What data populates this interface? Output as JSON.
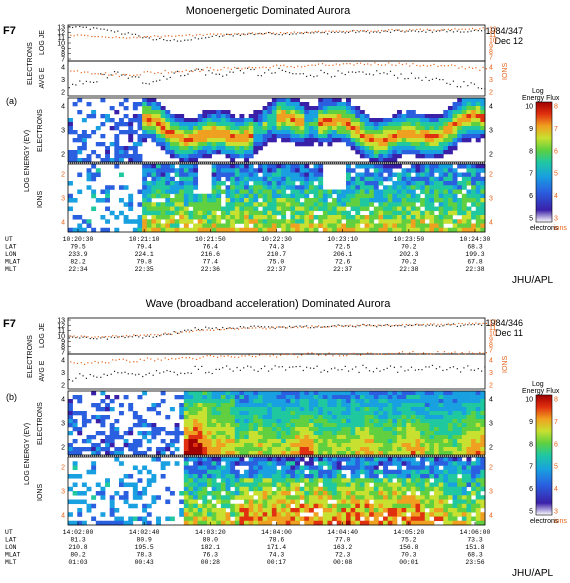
{
  "chart_data": [
    {
      "type": "heatmap",
      "title": "Monoenergetic Dominated Aurora",
      "panel_letter": "(a)",
      "satellite": "F7",
      "date_code": "1984/347",
      "date": "Dec 12",
      "x_tick_labels": {
        "UT": [
          "10:20:30",
          "10:21:10",
          "10:21:50",
          "10:22:30",
          "10:23:10",
          "10:23:50",
          "10:24:30"
        ],
        "LAT": [
          "79.5",
          "79.4",
          "76.4",
          "74.3",
          "72.5",
          "70.2",
          "68.3"
        ],
        "LON": [
          "233.9",
          "224.1",
          "216.6",
          "210.7",
          "206.1",
          "202.3",
          "199.3"
        ],
        "MLAT": [
          "82.2",
          "79.8",
          "77.4",
          "75.0",
          "72.6",
          "70.2",
          "67.8"
        ],
        "MLT": [
          "22:34",
          "22:35",
          "22:36",
          "22:37",
          "22:37",
          "22:38",
          "22:38"
        ]
      },
      "electron_energy_flux": {
        "points": [
          13.1,
          13.0,
          12.8,
          12.6,
          12.3,
          11.9,
          11.6,
          11.1,
          10.8,
          10.6,
          10.6,
          10.7,
          10.9,
          11.2,
          11.4,
          11.6,
          11.7,
          11.8,
          11.9,
          11.9,
          11.8,
          11.9,
          12.0,
          12.0,
          12.0,
          12.1,
          12.1,
          12.2,
          12.2,
          12.1,
          12.2,
          12.3,
          12.3,
          12.2,
          12.3,
          12.4,
          12.3,
          12.2,
          12.4,
          12.3
        ],
        "ion_points": [
          11.0,
          10.9,
          10.8,
          10.7,
          10.6,
          10.5,
          10.6,
          10.7,
          10.8,
          10.9,
          10.9,
          11.0,
          11.0,
          11.1,
          11.1,
          11.2,
          11.2,
          11.3,
          11.3,
          11.4,
          11.4,
          11.5,
          11.5,
          11.6,
          11.6,
          11.7,
          11.7,
          11.8,
          11.8,
          11.8,
          11.9,
          11.9,
          11.9,
          12.0,
          12.0,
          12.0,
          12.1,
          12.1,
          12.1,
          12.2
        ]
      },
      "avg_energy": {
        "points": [
          2.5,
          2.7,
          3.0,
          3.3,
          3.5,
          3.3,
          3.1,
          2.9,
          3.0,
          3.3,
          3.5,
          3.6,
          3.8,
          3.6,
          3.4,
          3.6,
          3.8,
          3.7,
          3.5,
          3.6,
          3.7,
          3.5,
          3.4,
          3.5,
          3.6,
          3.5,
          3.4,
          3.5,
          3.4,
          3.6,
          3.5,
          3.4,
          3.3,
          3.2,
          3.0,
          2.9,
          2.8,
          2.7,
          2.6,
          2.5
        ],
        "ion_points": [
          3.7,
          3.7,
          3.6,
          3.5,
          3.4,
          3.4,
          3.5,
          3.6,
          3.6,
          3.7,
          3.7,
          3.8,
          3.8,
          3.9,
          3.9,
          3.9,
          4.0,
          4.0,
          4.0,
          4.1,
          4.1,
          4.1,
          4.1,
          4.2,
          4.2,
          4.2,
          4.2,
          4.3,
          4.3,
          4.3,
          4.3,
          4.3,
          4.2,
          4.2,
          4.2,
          4.1,
          4.1,
          4.0,
          4.0,
          3.9
        ]
      }
    },
    {
      "type": "heatmap",
      "title": "Wave (broadband acceleration) Dominated Aurora",
      "panel_letter": "(b)",
      "satellite": "F7",
      "date_code": "1984/346",
      "date": "Dec 11",
      "x_tick_labels": {
        "UT": [
          "14:02:00",
          "14:02:40",
          "14:03:20",
          "14:04:00",
          "14:04:40",
          "14:05:20",
          "14:06:00"
        ],
        "LAT": [
          "81.3",
          "80.9",
          "80.0",
          "78.6",
          "77.0",
          "75.2",
          "73.3"
        ],
        "LON": [
          "210.8",
          "195.5",
          "182.1",
          "171.4",
          "163.2",
          "156.8",
          "151.8"
        ],
        "MLAT": [
          "80.2",
          "78.3",
          "76.3",
          "74.3",
          "72.3",
          "70.3",
          "68.3"
        ],
        "MLT": [
          "01:03",
          "00:43",
          "00:28",
          "00:17",
          "00:08",
          "00:01",
          "23:56"
        ]
      },
      "electron_energy_flux": {
        "points": [
          9.8,
          9.7,
          9.6,
          9.7,
          9.8,
          9.9,
          10.0,
          9.9,
          10.0,
          10.3,
          10.8,
          11.2,
          11.5,
          11.6,
          11.5,
          11.6,
          11.7,
          11.8,
          11.8,
          11.7,
          11.8,
          11.9,
          11.9,
          11.8,
          11.9,
          12.0,
          11.9,
          12.0,
          12.1,
          12.0,
          12.1,
          12.1,
          12.0,
          12.1,
          12.2,
          12.1,
          12.2,
          12.1,
          12.2,
          12.2
        ],
        "ion_points": [
          9.5,
          9.5,
          9.4,
          9.5,
          9.6,
          9.6,
          9.7,
          9.8,
          9.9,
          10.0,
          10.2,
          10.4,
          10.6,
          10.7,
          10.8,
          10.9,
          10.9,
          11.0,
          11.0,
          11.1,
          11.1,
          11.2,
          11.2,
          11.3,
          11.3,
          11.4,
          11.4,
          11.4,
          11.5,
          11.5,
          11.5,
          11.6,
          11.6,
          11.6,
          11.7,
          11.7,
          11.7,
          11.8,
          11.8,
          11.8
        ]
      },
      "avg_energy": {
        "points": [
          2.6,
          2.7,
          2.8,
          2.9,
          3.0,
          2.9,
          2.8,
          2.9,
          3.0,
          3.0,
          3.1,
          3.2,
          3.3,
          3.2,
          3.3,
          3.4,
          3.3,
          3.4,
          3.3,
          3.4,
          3.3,
          3.4,
          3.3,
          3.4,
          3.3,
          3.4,
          3.4,
          3.3,
          3.4,
          3.3,
          3.4,
          3.3,
          3.4,
          3.3,
          3.4,
          3.3,
          3.4,
          3.3,
          3.4,
          3.3
        ],
        "ion_points": [
          3.8,
          3.8,
          3.9,
          3.9,
          4.0,
          4.0,
          4.0,
          4.1,
          4.1,
          4.1,
          4.2,
          4.2,
          4.2,
          4.3,
          4.3,
          4.3,
          4.3,
          4.4,
          4.4,
          4.4,
          4.4,
          4.4,
          4.5,
          4.5,
          4.5,
          4.5,
          4.5,
          4.5,
          4.6,
          4.6,
          4.6,
          4.6,
          4.6,
          4.6,
          4.6,
          4.6,
          4.6,
          4.6,
          4.6,
          4.6
        ]
      }
    }
  ],
  "labels": {
    "electrons_axis": "ELECTRONS",
    "ions_axis": "IONS",
    "log_je": "LOG JE",
    "avg_e": "AVG E",
    "log_energy_ev": "LOG ENERGY (EV)",
    "row_keys": [
      "UT",
      "LAT",
      "LON",
      "MLAT",
      "MLT"
    ],
    "credit": "JHU/APL",
    "colorbar_title_1": "Log",
    "colorbar_title_2": "Energy Flux",
    "colorbar_electrons": "electrons",
    "colorbar_ions": "ions"
  },
  "axes": {
    "top_left_ticks": [
      "13",
      "12",
      "11",
      "10",
      "9",
      "8",
      "7"
    ],
    "top_right_ticks": [
      "12",
      "11",
      "10",
      "9",
      "8",
      "7"
    ],
    "avg_left_ticks": [
      "4",
      "3",
      "2"
    ],
    "avg_right_ticks": [
      "4",
      "3",
      "2"
    ],
    "elec_spec_ticks": [
      "4",
      "3",
      "2"
    ],
    "ion_spec_ticks": [
      "2",
      "3",
      "4"
    ],
    "colorbar_electron_ticks": [
      "10",
      "9",
      "8",
      "7",
      "6",
      "5"
    ],
    "colorbar_ion_ticks": [
      "8",
      "7",
      "6",
      "5",
      "4",
      "3"
    ]
  },
  "colors": {
    "ion_axis": "#e8631a",
    "electron_points": "#222222",
    "ion_points": "#e8631a",
    "spectrogram_scale": [
      "#ffffff",
      "#3a20a8",
      "#2a5fe0",
      "#18a0e0",
      "#20c8a0",
      "#60d040",
      "#c8e030",
      "#f0a020",
      "#e03010",
      "#a00000"
    ]
  }
}
